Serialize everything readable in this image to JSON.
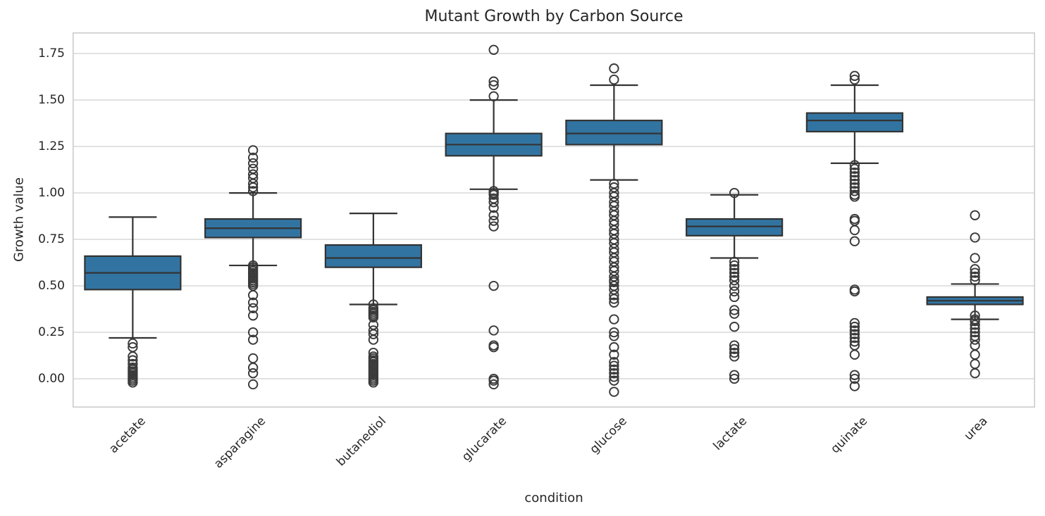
{
  "chart_data": {
    "type": "box",
    "title": "Mutant Growth by Carbon Source",
    "xlabel": "condition",
    "ylabel": "Growth value",
    "categories": [
      "acetate",
      "asparagine",
      "butanediol",
      "glucarate",
      "glucose",
      "lactate",
      "quinate",
      "urea"
    ],
    "ylim": [
      -0.155,
      1.864
    ],
    "grid": true,
    "legend": "none",
    "yticks": [
      {
        "value": 0.0,
        "label": "0.00"
      },
      {
        "value": 0.25,
        "label": "0.25"
      },
      {
        "value": 0.5,
        "label": "0.50"
      },
      {
        "value": 0.75,
        "label": "0.75"
      },
      {
        "value": 1.0,
        "label": "1.00"
      },
      {
        "value": 1.25,
        "label": "1.25"
      },
      {
        "value": 1.5,
        "label": "1.50"
      },
      {
        "value": 1.75,
        "label": "1.75"
      }
    ],
    "boxes": [
      {
        "category": "acetate",
        "whisker_low": 0.22,
        "q1": 0.48,
        "median": 0.57,
        "q3": 0.66,
        "whisker_high": 0.87,
        "outliers": [
          0.19,
          0.17,
          0.12,
          0.1,
          0.08,
          0.06,
          0.05,
          0.04,
          0.03,
          0.02,
          0.01,
          0.0,
          -0.01,
          -0.02
        ]
      },
      {
        "category": "asparagine",
        "whisker_low": 0.61,
        "q1": 0.76,
        "median": 0.81,
        "q3": 0.86,
        "whisker_high": 1.0,
        "outliers": [
          1.23,
          1.19,
          1.16,
          1.13,
          1.1,
          1.08,
          1.05,
          1.03,
          1.01,
          0.61,
          0.6,
          0.59,
          0.58,
          0.57,
          0.56,
          0.55,
          0.54,
          0.53,
          0.52,
          0.51,
          0.5,
          0.45,
          0.41,
          0.38,
          0.34,
          0.25,
          0.21,
          0.11,
          0.06,
          0.03,
          -0.03
        ]
      },
      {
        "category": "butanediol",
        "whisker_low": 0.4,
        "q1": 0.6,
        "median": 0.65,
        "q3": 0.72,
        "whisker_high": 0.89,
        "outliers": [
          0.4,
          0.38,
          0.37,
          0.36,
          0.35,
          0.34,
          0.33,
          0.29,
          0.26,
          0.24,
          0.21,
          0.14,
          0.12,
          0.11,
          0.1,
          0.09,
          0.08,
          0.07,
          0.06,
          0.05,
          0.04,
          0.03,
          0.02,
          0.01,
          0.0,
          -0.01,
          -0.02
        ]
      },
      {
        "category": "glucarate",
        "whisker_low": 1.02,
        "q1": 1.2,
        "median": 1.26,
        "q3": 1.32,
        "whisker_high": 1.5,
        "outliers": [
          1.77,
          1.6,
          1.58,
          1.52,
          1.01,
          1.0,
          0.99,
          0.97,
          0.95,
          0.92,
          0.88,
          0.85,
          0.82,
          0.5,
          0.26,
          0.18,
          0.17,
          0.0,
          -0.01,
          -0.03
        ]
      },
      {
        "category": "glucose",
        "whisker_low": 1.07,
        "q1": 1.26,
        "median": 1.32,
        "q3": 1.39,
        "whisker_high": 1.58,
        "outliers": [
          1.67,
          1.61,
          1.05,
          1.03,
          1.0,
          0.98,
          0.95,
          0.93,
          0.9,
          0.88,
          0.85,
          0.83,
          0.8,
          0.78,
          0.75,
          0.73,
          0.7,
          0.68,
          0.65,
          0.63,
          0.6,
          0.58,
          0.55,
          0.53,
          0.52,
          0.5,
          0.48,
          0.45,
          0.43,
          0.41,
          0.32,
          0.25,
          0.23,
          0.17,
          0.13,
          0.09,
          0.07,
          0.05,
          0.03,
          0.01,
          -0.01,
          -0.07
        ]
      },
      {
        "category": "lactate",
        "whisker_low": 0.65,
        "q1": 0.77,
        "median": 0.82,
        "q3": 0.86,
        "whisker_high": 0.99,
        "outliers": [
          1.0,
          0.63,
          0.61,
          0.59,
          0.57,
          0.55,
          0.53,
          0.5,
          0.47,
          0.44,
          0.37,
          0.35,
          0.28,
          0.18,
          0.16,
          0.14,
          0.12,
          0.02,
          0.0
        ]
      },
      {
        "category": "quinate",
        "whisker_low": 1.16,
        "q1": 1.33,
        "median": 1.39,
        "q3": 1.43,
        "whisker_high": 1.58,
        "outliers": [
          1.63,
          1.61,
          1.15,
          1.13,
          1.11,
          1.09,
          1.07,
          1.05,
          1.03,
          1.01,
          0.99,
          0.98,
          0.86,
          0.85,
          0.8,
          0.74,
          0.48,
          0.47,
          0.3,
          0.28,
          0.26,
          0.24,
          0.22,
          0.2,
          0.18,
          0.13,
          0.02,
          0.0,
          -0.04
        ]
      },
      {
        "category": "urea",
        "whisker_low": 0.32,
        "q1": 0.4,
        "median": 0.42,
        "q3": 0.44,
        "whisker_high": 0.51,
        "outliers": [
          0.88,
          0.76,
          0.65,
          0.59,
          0.57,
          0.55,
          0.53,
          0.34,
          0.32,
          0.31,
          0.29,
          0.27,
          0.25,
          0.23,
          0.21,
          0.18,
          0.13,
          0.08,
          0.03
        ]
      }
    ],
    "colors": {
      "box_fill": "#3274A1",
      "box_edge": "#333333",
      "median_line": "#333333",
      "whisker": "#333333",
      "outlier_edge": "#3a3a3a",
      "grid": "#dcdcdc",
      "spine": "#cccccc",
      "text": "#262626",
      "background": "#ffffff"
    }
  }
}
